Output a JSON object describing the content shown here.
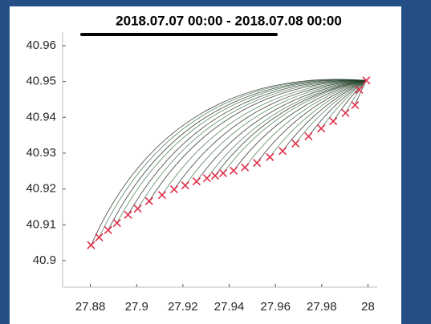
{
  "chart_data": {
    "type": "scatter",
    "title": "2018.07.07 00:00 - 2018.07.08 00:00",
    "x": [
      27.8803,
      27.8838,
      27.8877,
      27.8915,
      27.8963,
      27.9005,
      27.9054,
      27.911,
      27.9162,
      27.921,
      27.9259,
      27.9304,
      27.9339,
      27.9374,
      27.9419,
      27.9468,
      27.952,
      27.9576,
      27.9631,
      27.9687,
      27.9743,
      27.9798,
      27.985,
      27.9903,
      27.9944,
      27.9962,
      27.9993
    ],
    "values": [
      40.9043,
      40.9065,
      40.9085,
      40.9105,
      40.9128,
      40.9145,
      40.9166,
      40.9183,
      40.9199,
      40.921,
      40.9221,
      40.923,
      40.9237,
      40.9244,
      40.9251,
      40.926,
      40.9273,
      40.9289,
      40.9306,
      40.9327,
      40.9347,
      40.9369,
      40.9389,
      40.9412,
      40.9434,
      40.9477,
      40.9503
    ],
    "color": "#e0304a",
    "marker": "x",
    "xlim": [
      27.868,
      28.004
    ],
    "xticks": [
      27.88,
      27.9,
      27.92,
      27.94,
      27.96,
      27.98,
      28
    ],
    "ylim": [
      40.8926,
      40.9638
    ],
    "yticks": [
      40.9,
      40.91,
      40.92,
      40.93,
      40.94,
      40.95,
      40.96
    ],
    "grid": false
  }
}
